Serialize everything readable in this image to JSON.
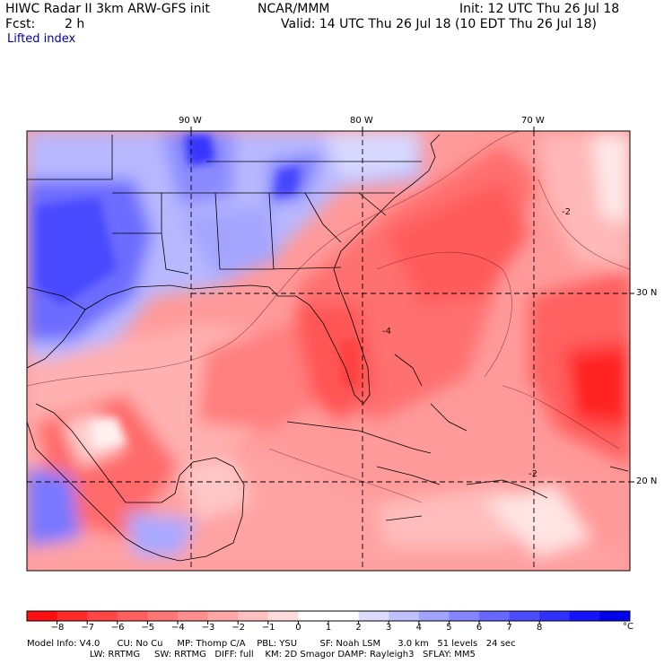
{
  "header": {
    "model": "HIWC Radar II 3km ARW-GFS init",
    "agency": "NCAR/MMM",
    "init": "Init: 12 UTC Thu 26 Jul 18",
    "fcst_label": "Fcst:",
    "fcst_value": "2 h",
    "valid": "Valid: 14 UTC Thu 26 Jul 18 (10 EDT Thu 26 Jul 18)",
    "field": "Lifted index"
  },
  "map": {
    "lon_labels": [
      "90 W",
      "80 W",
      "70 W"
    ],
    "lat_labels": [
      "30 N",
      "20 N"
    ],
    "contour_labels": [
      "-2",
      "-4",
      "-2"
    ]
  },
  "colorbar": {
    "unit": "°C",
    "ticks": [
      "−8",
      "−7",
      "−6",
      "−5",
      "−4",
      "−3",
      "−2",
      "−1",
      "0",
      "1",
      "2",
      "3",
      "4",
      "5",
      "6",
      "7",
      "8"
    ],
    "colors": [
      "#ff1010",
      "#ff2a2a",
      "#ff4545",
      "#ff5f5f",
      "#ff7676",
      "#ff8e8e",
      "#ffa6a6",
      "#ffc0c0",
      "#ffdcdc",
      "#ffffff",
      "#ffffff",
      "#dcdcff",
      "#c0c0ff",
      "#a2a2ff",
      "#8484ff",
      "#6868ff",
      "#4c4cff",
      "#3030ff",
      "#1414ff",
      "#0000ee"
    ]
  },
  "footer": {
    "line1": "Model Info: V4.0      CU: No Cu     MP: Thomp C/A    PBL: YSU        SF: Noah LSM      3.0 km   51 levels   24 sec",
    "line2": "                      LW: RRTMG     SW: RRTMG   DIFF: full    KM: 2D Smagor DAMP: Rayleigh3   SFLAY: MM5"
  },
  "colors": {
    "unstable_strong": "#ff4040",
    "unstable": "#ff8a8a",
    "neutral": "#ffe6e6",
    "stable": "#8080ff",
    "stable_strong": "#3a3aff"
  }
}
